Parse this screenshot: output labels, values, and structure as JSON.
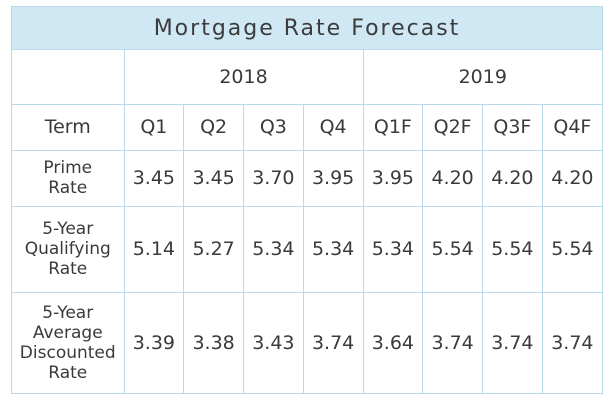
{
  "chart_data": {
    "type": "table",
    "title": "Mortgage Rate Forecast",
    "years": [
      {
        "label": "2018",
        "span": 4
      },
      {
        "label": "2019",
        "span": 4
      }
    ],
    "header_label": "Term",
    "columns": [
      "Q1",
      "Q2",
      "Q3",
      "Q4",
      "Q1F",
      "Q2F",
      "Q3F",
      "Q4F"
    ],
    "rows": [
      {
        "label_lines": [
          "Prime",
          "Rate"
        ],
        "values": [
          "3.45",
          "3.45",
          "3.70",
          "3.95",
          "3.95",
          "4.20",
          "4.20",
          "4.20"
        ]
      },
      {
        "label_lines": [
          "5-Year",
          "Qualifying",
          "Rate"
        ],
        "values": [
          "5.14",
          "5.27",
          "5.34",
          "5.34",
          "5.34",
          "5.54",
          "5.54",
          "5.54"
        ]
      },
      {
        "label_lines": [
          "5-Year",
          "Average",
          "Discounted",
          "Rate"
        ],
        "values": [
          "3.39",
          "3.38",
          "3.43",
          "3.74",
          "3.64",
          "3.74",
          "3.74",
          "3.74"
        ]
      }
    ]
  }
}
